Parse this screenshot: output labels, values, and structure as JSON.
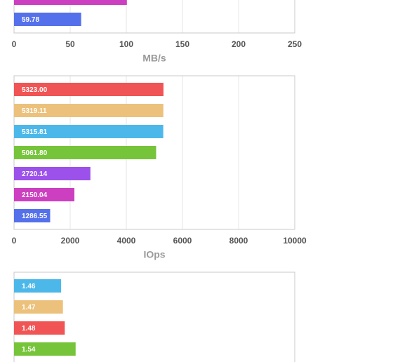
{
  "chart_data": [
    {
      "type": "bar",
      "orientation": "horizontal",
      "values": [
        100.5,
        59.78
      ],
      "value_labels": [
        null,
        "59.78"
      ],
      "colors": [
        "#cc3fc0",
        "#5470ea"
      ],
      "xlim": [
        0,
        250
      ],
      "xticks": [
        0,
        50,
        100,
        150,
        200,
        250
      ],
      "xlabel": "MB/s",
      "grid": true
    },
    {
      "type": "bar",
      "orientation": "horizontal",
      "values": [
        5323.0,
        5319.11,
        5315.81,
        5061.8,
        2720.14,
        2150.04,
        1286.55
      ],
      "value_labels": [
        "5323.00",
        "5319.11",
        "5315.81",
        "5061.80",
        "2720.14",
        "2150.04",
        "1286.55"
      ],
      "colors": [
        "#f05454",
        "#ecc17c",
        "#4cb8ea",
        "#76c43a",
        "#9b51ea",
        "#cc3fc0",
        "#5470ea"
      ],
      "xlim": [
        0,
        10000
      ],
      "xticks": [
        0,
        2000,
        4000,
        6000,
        8000,
        10000
      ],
      "xlabel": "IOps",
      "grid": true
    },
    {
      "type": "bar",
      "orientation": "horizontal",
      "values": [
        1.46,
        1.47,
        1.48,
        1.54
      ],
      "value_labels": [
        "1.46",
        "1.47",
        "1.48",
        "1.54"
      ],
      "colors": [
        "#4cb8ea",
        "#ecc17c",
        "#f05454",
        "#76c43a"
      ],
      "xlim": [
        1.2,
        2.75
      ],
      "grid": true
    }
  ]
}
